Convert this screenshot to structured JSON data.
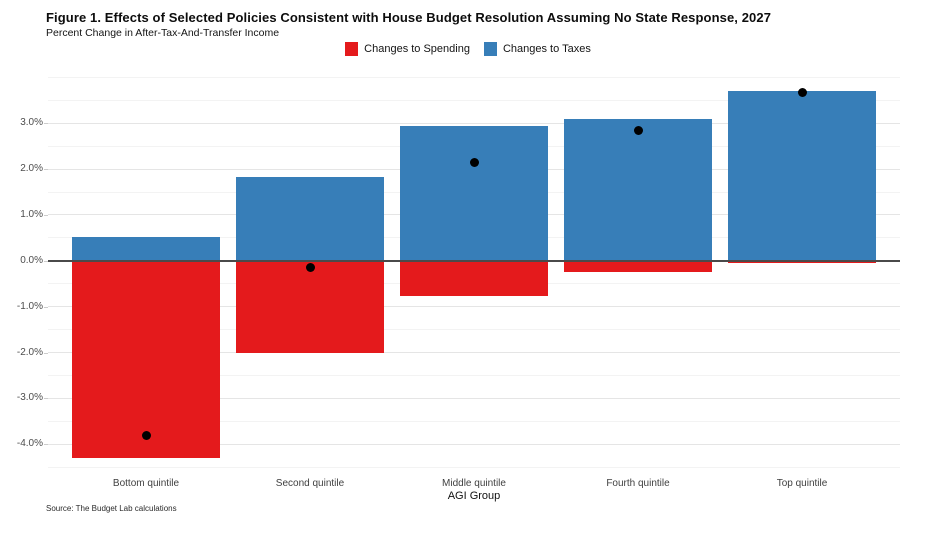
{
  "figure": {
    "title": "Figure 1. Effects of Selected Policies Consistent with House Budget Resolution Assuming No State Response, 2027",
    "subtitle": "Percent Change in After-Tax-And-Transfer Income",
    "source": "Source: The Budget Lab calculations",
    "x_axis_title": "AGI Group"
  },
  "legend": [
    {
      "label": "Changes to Spending",
      "color": "#e41a1c"
    },
    {
      "label": "Changes to Taxes",
      "color": "#377eb8"
    }
  ],
  "colors": {
    "spending": "#e41a1c",
    "taxes": "#377eb8",
    "net_dot": "#000000",
    "zero_line": "#4a4a4a"
  },
  "chart_data": {
    "type": "bar",
    "stacked": true,
    "title": "Figure 1. Effects of Selected Policies Consistent with House Budget Resolution Assuming No State Response, 2027",
    "subtitle": "Percent Change in After-Tax-And-Transfer Income",
    "xlabel": "AGI Group",
    "ylabel": "Percent Change in After-Tax-And-Transfer Income",
    "categories": [
      "Bottom quintile",
      "Second quintile",
      "Middle quintile",
      "Fourth quintile",
      "Top quintile"
    ],
    "series": [
      {
        "name": "Changes to Spending",
        "color": "#e41a1c",
        "values": [
          -4.3,
          -2.0,
          -0.76,
          -0.25,
          -0.05
        ]
      },
      {
        "name": "Changes to Taxes",
        "color": "#377eb8",
        "values": [
          0.52,
          1.82,
          2.93,
          3.1,
          3.7
        ]
      }
    ],
    "net_points": {
      "name": "Net effect",
      "marker": "black-dot",
      "values": [
        -3.8,
        -0.15,
        2.15,
        2.84,
        3.66
      ]
    },
    "y_axis": {
      "unit": "%",
      "tick_values": [
        3.0,
        2.0,
        1.0,
        0.0,
        -1.0,
        -2.0,
        -3.0,
        -4.0
      ],
      "tick_labels": [
        "3.0%",
        "2.0%",
        "1.0%",
        "0.0%",
        "-1.0%",
        "-2.0%",
        "-3.0%",
        "-4.0%"
      ],
      "minor_grid_step": 0.5,
      "grid_top_value": 4.0,
      "grid_bottom_value": -4.5,
      "ylim": [
        4.05,
        -4.58
      ]
    },
    "grid": "on",
    "legend_position": "top-center"
  }
}
